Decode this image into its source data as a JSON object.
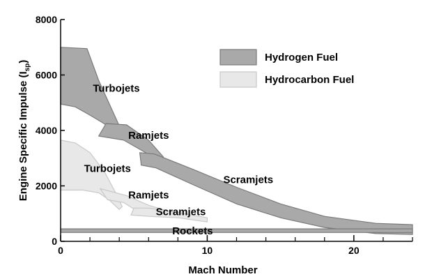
{
  "chart_data": {
    "type": "area",
    "xlabel": "Mach Number",
    "ylabel": "Engine Specific Impulse (I",
    "ylabel_sub": "sp",
    "ylabel_close": ")",
    "xlim": [
      0,
      24
    ],
    "ylim": [
      0,
      8000
    ],
    "x_ticks": [
      0,
      10,
      20
    ],
    "x_minor_ticks": [
      2,
      4,
      6,
      8,
      12,
      14,
      16,
      18,
      22,
      24
    ],
    "y_ticks": [
      0,
      2000,
      4000,
      6000,
      8000
    ],
    "grid": false,
    "legend_position": "top-right",
    "colors": {
      "hydrogen": "#a9a9a9",
      "hydrocarbon": "#e8e8e8",
      "rockets": "#a9a9a9",
      "outline": "#7a7a7a",
      "outline_light": "#c8c8c8"
    },
    "legend": [
      {
        "label": "Hydrogen Fuel",
        "key": "hydrogen"
      },
      {
        "label": "Hydrocarbon Fuel",
        "key": "hydrocarbon"
      }
    ],
    "regions": [
      {
        "label": "Turbojets",
        "fuel": "hydrogen",
        "label_at": [
          3.8,
          5500
        ],
        "polygon": [
          [
            0,
            7000
          ],
          [
            1.8,
            6950
          ],
          [
            2.6,
            5800
          ],
          [
            3.8,
            4400
          ],
          [
            4.3,
            3800
          ],
          [
            2.8,
            4300
          ],
          [
            2.0,
            4550
          ],
          [
            1.0,
            4850
          ],
          [
            0,
            4950
          ]
        ]
      },
      {
        "label": "Ramjets",
        "fuel": "hydrogen",
        "label_at": [
          6.0,
          3800
        ],
        "polygon": [
          [
            3.1,
            4250
          ],
          [
            4.5,
            4200
          ],
          [
            6.0,
            3650
          ],
          [
            7.0,
            3050
          ],
          [
            7.3,
            2700
          ],
          [
            7.0,
            2550
          ],
          [
            5.8,
            3200
          ],
          [
            4.3,
            3650
          ],
          [
            2.6,
            3800
          ]
        ]
      },
      {
        "label": "Scramjets",
        "fuel": "hydrogen",
        "label_at": [
          12.8,
          2200
        ],
        "polygon": [
          [
            5.4,
            3200
          ],
          [
            6.4,
            3150
          ],
          [
            9.0,
            2600
          ],
          [
            12.0,
            1950
          ],
          [
            15.0,
            1350
          ],
          [
            18.0,
            900
          ],
          [
            21.5,
            650
          ],
          [
            24.0,
            600
          ],
          [
            24.0,
            250
          ],
          [
            21.5,
            280
          ],
          [
            18.0,
            500
          ],
          [
            15.0,
            850
          ],
          [
            12.0,
            1350
          ],
          [
            9.0,
            2050
          ],
          [
            6.5,
            2650
          ],
          [
            5.5,
            2750
          ]
        ]
      },
      {
        "label": "Turbojets",
        "fuel": "hydrocarbon",
        "label_at": [
          3.2,
          2600
        ],
        "polygon": [
          [
            0,
            3650
          ],
          [
            1.0,
            3550
          ],
          [
            2.0,
            3200
          ],
          [
            3.0,
            2500
          ],
          [
            3.7,
            1800
          ],
          [
            4.2,
            1250
          ],
          [
            4.0,
            1150
          ],
          [
            3.3,
            1500
          ],
          [
            2.6,
            1750
          ],
          [
            1.5,
            1850
          ],
          [
            0,
            1850
          ]
        ]
      },
      {
        "label": "Ramjets",
        "fuel": "hydrocarbon",
        "label_at": [
          6.0,
          1650
        ],
        "polygon": [
          [
            2.7,
            1900
          ],
          [
            4.5,
            1650
          ],
          [
            6.0,
            1300
          ],
          [
            7.3,
            1100
          ],
          [
            7.0,
            950
          ],
          [
            6.2,
            900
          ],
          [
            5.2,
            1100
          ],
          [
            4.3,
            1400
          ],
          [
            3.2,
            1500
          ]
        ]
      },
      {
        "label": "Scramjets",
        "fuel": "hydrocarbon",
        "label_at": [
          8.2,
          1050
        ],
        "polygon": [
          [
            5.0,
            1200
          ],
          [
            6.0,
            1200
          ],
          [
            8.0,
            1050
          ],
          [
            10.0,
            850
          ],
          [
            10.0,
            700
          ],
          [
            8.0,
            850
          ],
          [
            6.0,
            900
          ],
          [
            4.8,
            950
          ]
        ]
      },
      {
        "label": "Rockets",
        "fuel": "hydrogen",
        "label_at": [
          9.0,
          350
        ],
        "polygon": [
          [
            0,
            450
          ],
          [
            24.0,
            450
          ],
          [
            24.0,
            320
          ],
          [
            0,
            320
          ]
        ]
      }
    ]
  }
}
